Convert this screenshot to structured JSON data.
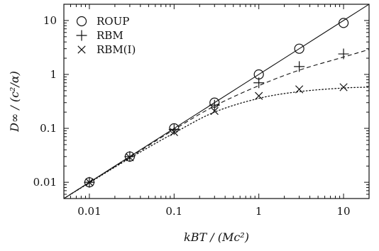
{
  "chart_data": {
    "type": "scatter",
    "xlabel": "kBT / (Mc²)",
    "ylabel": "D∞ / (c²/α)",
    "x_scale": "log",
    "y_scale": "log",
    "xlim": [
      0.005,
      20
    ],
    "ylim": [
      0.005,
      20
    ],
    "x_ticks": [
      {
        "value": 0.01,
        "label": "0.01"
      },
      {
        "value": 0.1,
        "label": "0.1"
      },
      {
        "value": 1,
        "label": "1"
      },
      {
        "value": 10,
        "label": "10"
      }
    ],
    "y_ticks": [
      {
        "value": 0.01,
        "label": "0.01"
      },
      {
        "value": 0.1,
        "label": "0.1"
      },
      {
        "value": 1,
        "label": "1"
      },
      {
        "value": 10,
        "label": "10"
      }
    ],
    "grid": false,
    "legend_position": "top-left",
    "series": [
      {
        "name": "ROUP",
        "marker": "circle",
        "x": [
          0.01,
          0.03,
          0.1,
          0.3,
          1,
          3,
          10
        ],
        "y": [
          0.01,
          0.03,
          0.1,
          0.3,
          1.0,
          3.0,
          9.0
        ]
      },
      {
        "name": "RBM",
        "marker": "plus",
        "x": [
          0.01,
          0.03,
          0.1,
          0.3,
          1,
          3,
          10
        ],
        "y": [
          0.01,
          0.03,
          0.095,
          0.27,
          0.7,
          1.4,
          2.4
        ]
      },
      {
        "name": "RBM(I)",
        "marker": "cross",
        "x": [
          0.01,
          0.03,
          0.1,
          0.3,
          1,
          3,
          10
        ],
        "y": [
          0.01,
          0.029,
          0.085,
          0.21,
          0.4,
          0.53,
          0.58
        ]
      }
    ],
    "curves": [
      {
        "style": "solid",
        "x": [
          0.005,
          0.01,
          0.03,
          0.1,
          0.3,
          1,
          3,
          10,
          20
        ],
        "y": [
          0.005,
          0.01,
          0.03,
          0.1,
          0.3,
          1,
          3,
          10,
          20
        ]
      },
      {
        "style": "dashed",
        "x": [
          0.005,
          0.01,
          0.03,
          0.1,
          0.3,
          1,
          3,
          10,
          20
        ],
        "y": [
          0.005,
          0.01,
          0.029,
          0.095,
          0.26,
          0.62,
          1.2,
          2.1,
          2.9
        ]
      },
      {
        "style": "dotted",
        "x": [
          0.005,
          0.01,
          0.03,
          0.1,
          0.3,
          1,
          3,
          10,
          20
        ],
        "y": [
          0.005,
          0.0098,
          0.028,
          0.082,
          0.2,
          0.36,
          0.48,
          0.56,
          0.58
        ]
      }
    ]
  }
}
